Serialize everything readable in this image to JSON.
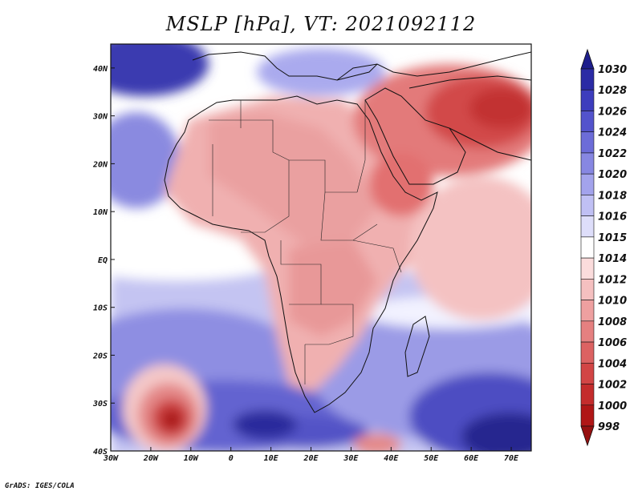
{
  "title": "MSLP [hPa], VT: 2021092112",
  "credit": "GrADS: IGES/COLA",
  "map": {
    "variable": "Mean sea level pressure",
    "units": "hPa",
    "valid_time": "2021092112",
    "lon_range": [
      -30,
      75
    ],
    "lat_range": [
      -40,
      45
    ],
    "lon_ticks": [
      "30W",
      "20W",
      "10W",
      "0",
      "10E",
      "20E",
      "30E",
      "40E",
      "50E",
      "60E",
      "70E"
    ],
    "lat_ticks": [
      "40N",
      "30N",
      "20N",
      "10N",
      "EQ",
      "10S",
      "20S",
      "30S",
      "40S"
    ]
  },
  "colorbar": {
    "levels": [
      "1030",
      "1028",
      "1026",
      "1024",
      "1022",
      "1020",
      "1018",
      "1016",
      "1015",
      "1014",
      "1012",
      "1010",
      "1008",
      "1006",
      "1004",
      "1002",
      "1000",
      "998"
    ],
    "colors": [
      "#1e1e8c",
      "#2b2ba5",
      "#3d3dbd",
      "#5353cc",
      "#6c6cd8",
      "#8787e2",
      "#a3a3ec",
      "#c0c0f4",
      "#dedefa",
      "#ffffff",
      "#fbdcdc",
      "#f5c0c0",
      "#eea0a0",
      "#e58080",
      "#dc6262",
      "#d24545",
      "#c42c2c",
      "#b01616",
      "#961010"
    ]
  }
}
